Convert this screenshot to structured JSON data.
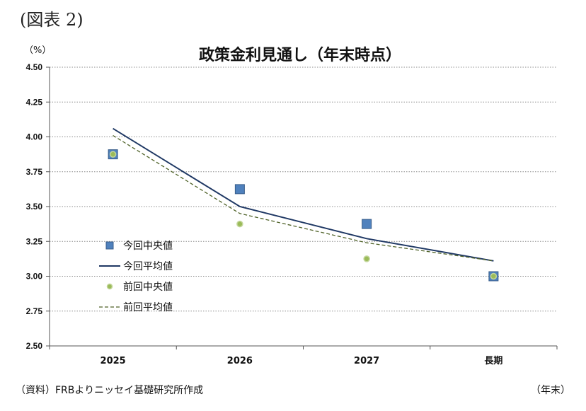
{
  "figure_label": "(図表 2)",
  "source_note": "（資料）FRBよりニッセイ基礎研究所作成",
  "chart_data": {
    "type": "line",
    "title": "政策金利見通し（年末時点）",
    "ylabel": "（%）",
    "xlabel": "（年末）",
    "categories": [
      "2025",
      "2026",
      "2027",
      "長期"
    ],
    "ylim": [
      2.5,
      4.5
    ],
    "yticks": [
      "4.50",
      "4.25",
      "4.00",
      "3.75",
      "3.50",
      "3.25",
      "3.00",
      "2.75",
      "2.50"
    ],
    "grid": true,
    "legend_position": "bottom-left",
    "series": [
      {
        "name": "今回中央値",
        "kind": "marker",
        "marker": "square",
        "color": "#4f81bd",
        "values": [
          3.875,
          3.625,
          3.375,
          3.0
        ]
      },
      {
        "name": "今回平均値",
        "kind": "line",
        "style": "solid",
        "color": "#1f3864",
        "values": [
          4.06,
          3.5,
          3.27,
          3.11
        ]
      },
      {
        "name": "前回中央値",
        "kind": "marker",
        "marker": "circle",
        "color": "#9bbb59",
        "values": [
          3.875,
          3.375,
          3.125,
          3.0
        ]
      },
      {
        "name": "前回平均値",
        "kind": "line",
        "style": "dashed",
        "color": "#4f6228",
        "values": [
          4.01,
          3.45,
          3.24,
          3.11
        ]
      }
    ]
  }
}
